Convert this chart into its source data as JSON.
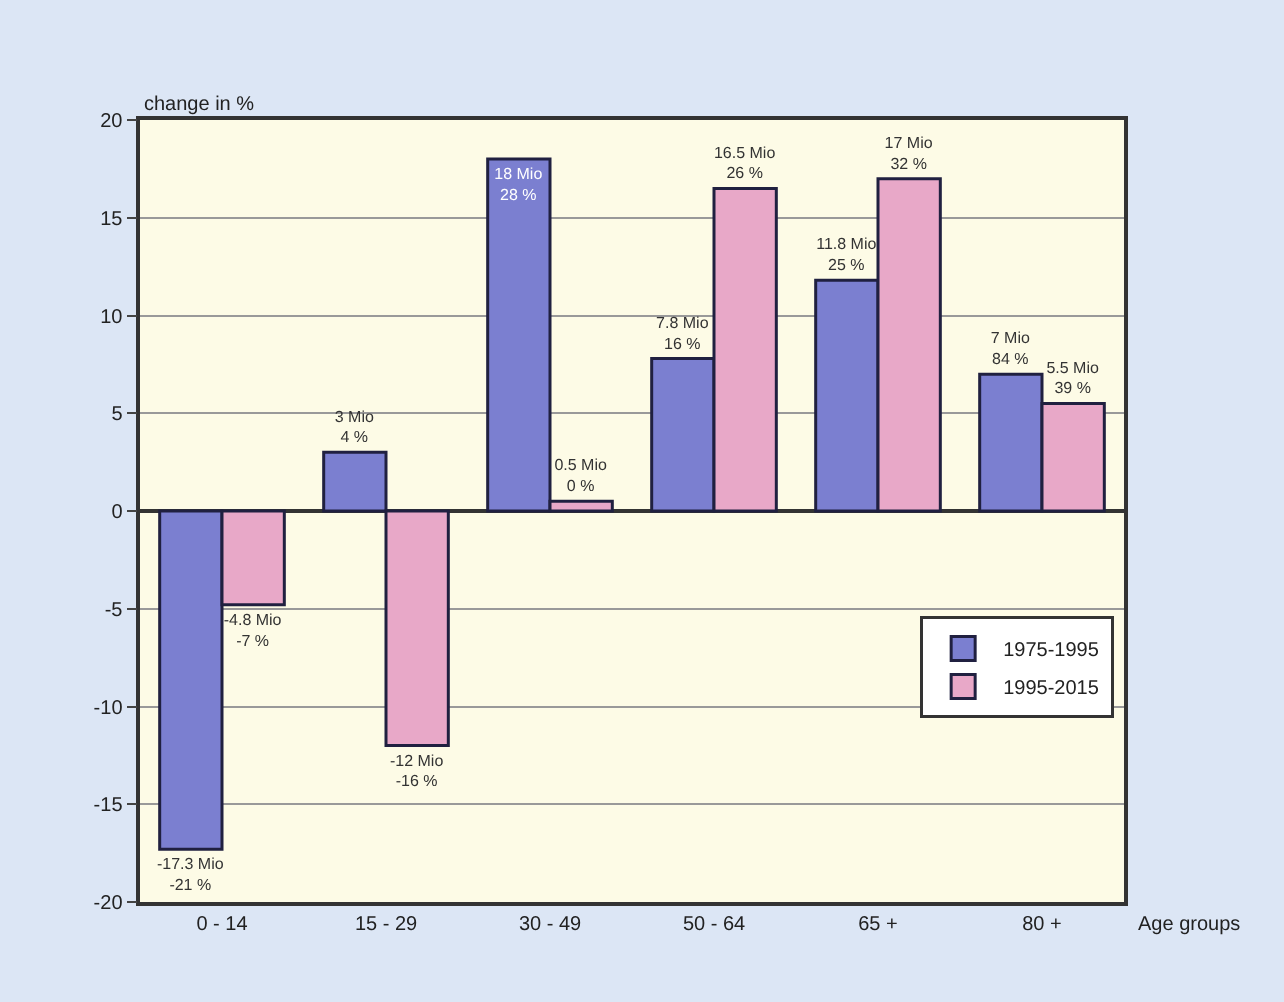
{
  "chart_data": {
    "type": "bar",
    "ylabel": "change in %",
    "xlabel": "Age groups",
    "categories": [
      "0 - 14",
      "15 - 29",
      "30 - 49",
      "50 - 64",
      "65 +",
      "80 +"
    ],
    "series": [
      {
        "name": "1975-1995",
        "color": "#7b7fd0",
        "values": [
          -17.3,
          3.0,
          18.0,
          7.8,
          11.8,
          7.0
        ],
        "value_labels": [
          "-17.3 Mio\n-21 %",
          "3 Mio\n4 %",
          "18 Mio\n28 %",
          "7.8 Mio\n16 %",
          "11.8 Mio\n25 %",
          "7 Mio\n84 %"
        ]
      },
      {
        "name": "1995-2015",
        "color": "#e8a8c8",
        "values": [
          -4.8,
          -12.0,
          0.5,
          16.5,
          17.0,
          5.5
        ],
        "value_labels": [
          "-4.8 Mio\n-7 %",
          "-12 Mio\n-16 %",
          "0.5 Mio\n0 %",
          "16.5 Mio\n26 %",
          "17 Mio\n32 %",
          "5.5 Mio\n39 %"
        ]
      }
    ],
    "ylim": [
      -20,
      20
    ],
    "yticks": [
      -20,
      -15,
      -10,
      -5,
      0,
      5,
      10,
      15,
      20
    ],
    "grid": "y",
    "legend": "right"
  }
}
